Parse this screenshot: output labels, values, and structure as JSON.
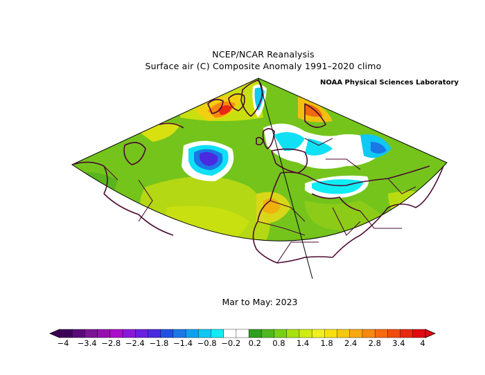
{
  "header": {
    "title": "NCEP/NCAR Reanalysis",
    "subtitle": "Surface air (C) Composite Anomaly 1991–2020 climo",
    "credit": "NOAA Physical Sciences Laboratory"
  },
  "period_label": "Mar to May: 2023",
  "colorbar": {
    "tick_labels": [
      "−4",
      "−3.4",
      "−2.8",
      "−2.4",
      "−1.8",
      "−1.4",
      "−0.8",
      "−0.2",
      "0.2",
      "0.8",
      "1.4",
      "1.8",
      "2.4",
      "2.8",
      "3.4",
      "4"
    ],
    "colors": [
      "#3d0059",
      "#5a0a78",
      "#7a1596",
      "#9610b0",
      "#a80fc8",
      "#8a18d8",
      "#6a1ee0",
      "#4a2ae0",
      "#2050e0",
      "#1a78e6",
      "#10a0ee",
      "#10c8f4",
      "#10ecf4",
      "#ffffff",
      "#ffffff",
      "#2ea020",
      "#4eb820",
      "#78d018",
      "#a8e010",
      "#d0ec10",
      "#f0f020",
      "#f8e010",
      "#f8c810",
      "#f8a810",
      "#f88810",
      "#f86a10",
      "#f04c10",
      "#e82810",
      "#e00a10"
    ]
  }
}
